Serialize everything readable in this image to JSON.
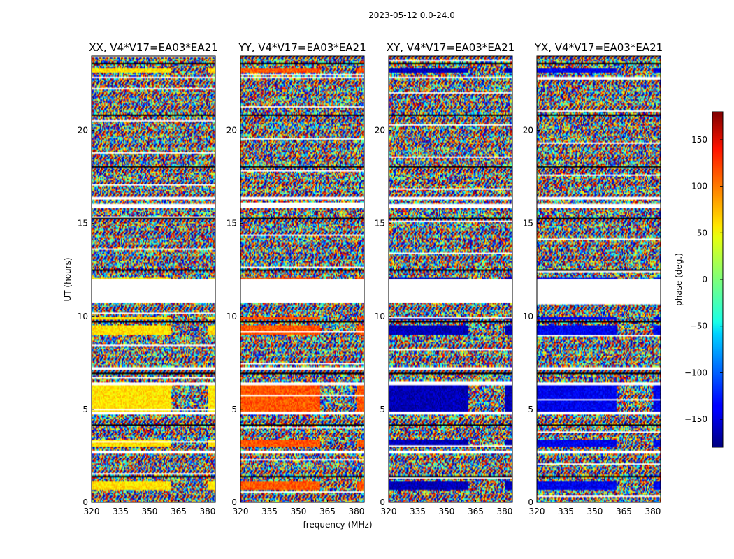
{
  "chart_data": {
    "type": "heatmap",
    "suptitle": "2023-05-12 0.0-24.0",
    "xlabel": "frequency (MHz)",
    "ylabel": "UT (hours)",
    "xlim": [
      320,
      384
    ],
    "ylim": [
      0,
      24
    ],
    "xticks": [
      320,
      335,
      350,
      365,
      380
    ],
    "yticks": [
      0,
      5,
      10,
      15,
      20
    ],
    "grid": false,
    "panels": [
      {
        "title": "XX, V4*V17=EA03*EA21",
        "product": "XX",
        "coherent_phase_deg": 55
      },
      {
        "title": "YY, V4*V17=EA03*EA21",
        "product": "YY",
        "coherent_phase_deg": 105
      },
      {
        "title": "XY, V4*V17=EA03*EA21",
        "product": "XY",
        "coherent_phase_deg": -160
      },
      {
        "title": "YX, V4*V17=EA03*EA21",
        "product": "YX",
        "coherent_phase_deg": -140
      }
    ],
    "colorbar": {
      "label": "phase (deg.)",
      "range": [
        -180,
        180
      ],
      "ticks": [
        150,
        100,
        50,
        0,
        -50,
        -100,
        -150
      ],
      "tick_labels": [
        "150",
        "100",
        "50",
        "0",
        "−50",
        "−100",
        "−150"
      ],
      "colormap": "jet"
    },
    "flagged_ut_ranges_hours": [
      [
        11.7,
        11.85
      ],
      [
        10.75,
        12.0
      ],
      [
        6.3,
        6.45
      ],
      [
        7.15,
        7.3
      ],
      [
        2.6,
        2.75
      ],
      [
        15.85,
        16.05
      ],
      [
        16.25,
        16.4
      ],
      [
        22.8,
        22.9
      ],
      [
        4.75,
        4.85
      ]
    ],
    "coherent_ut_ranges_hours": [
      [
        4.85,
        6.3
      ],
      [
        0.7,
        1.1
      ],
      [
        3.0,
        3.4
      ],
      [
        9.0,
        9.5
      ],
      [
        9.8,
        10.0
      ],
      [
        11.9,
        12.1
      ],
      [
        23.1,
        23.3
      ]
    ],
    "coherent_freq_limit_mhz": 361
  }
}
